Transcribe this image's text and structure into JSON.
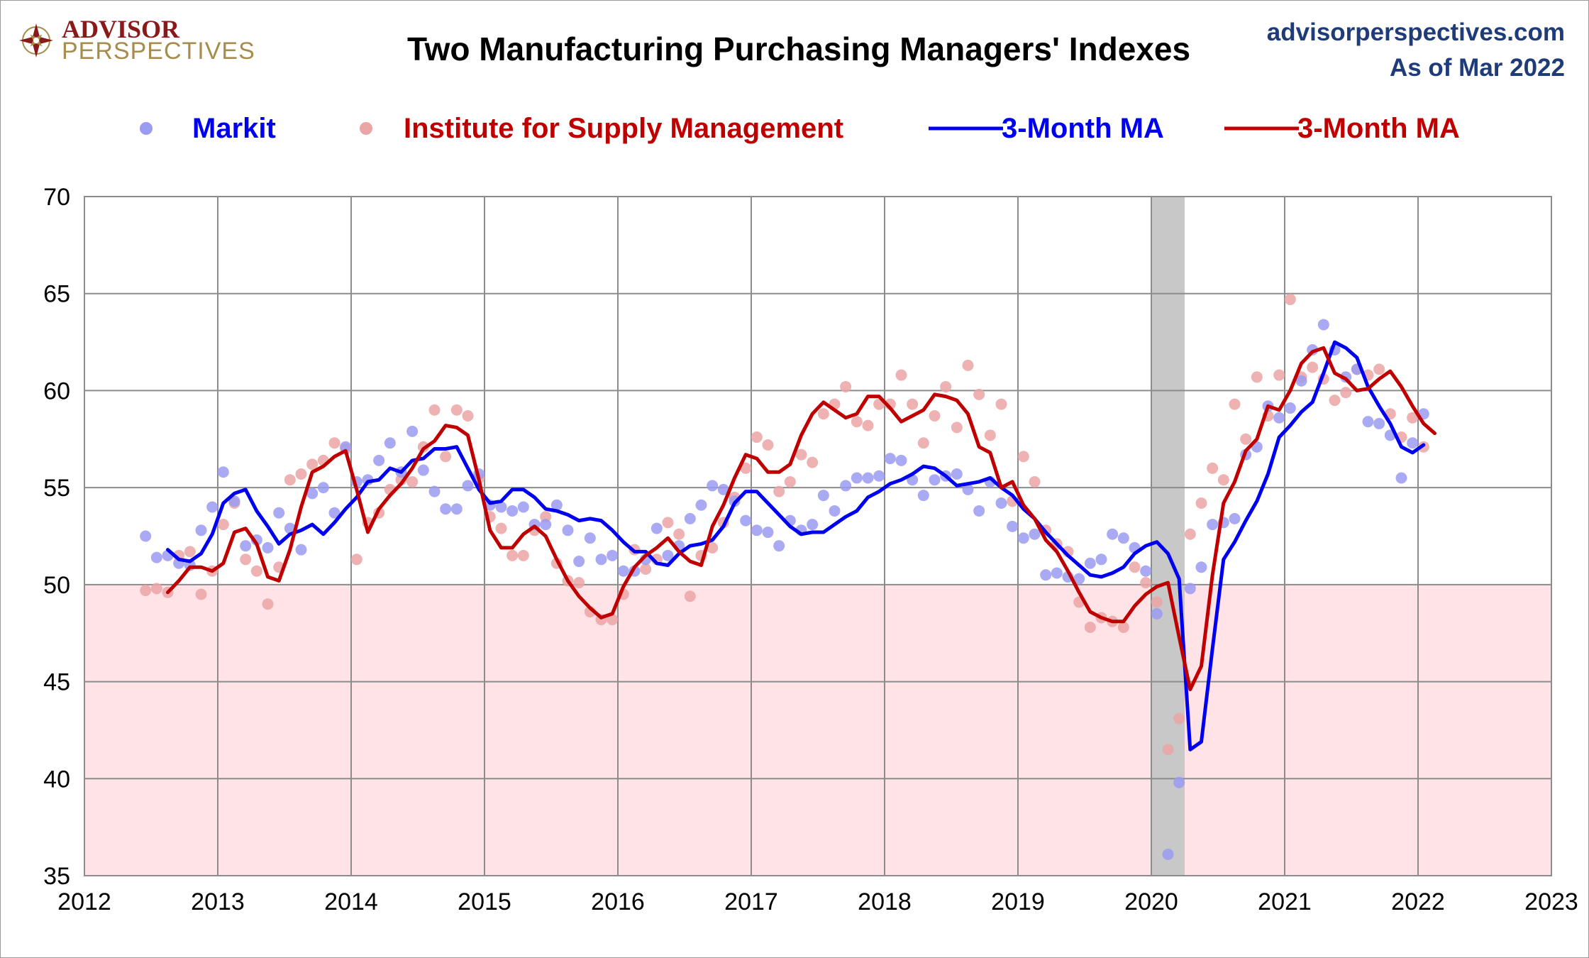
{
  "branding": {
    "logo_line1": "ADVISOR",
    "logo_line2": "PERSPECTIVES",
    "site": "advisorperspectives.com",
    "as_of": "As of Mar 2022"
  },
  "colors": {
    "markit_dot": "#9b9bf2",
    "ism_dot": "#eba5a5",
    "markit_line": "#0000f0",
    "ism_line": "#c00000",
    "below50_band": "#ffe3e6",
    "recession": "#c8c8c8",
    "grid": "#8c8c8c",
    "site_text": "#1f3c7a",
    "logo_gold": "#a78d4c",
    "logo_red": "#8a1a1a"
  },
  "chart_data": {
    "type": "scatter",
    "title": "Two Manufacturing Purchasing Managers' Indexes",
    "xlim": [
      2012,
      2023
    ],
    "ylim": [
      35,
      70
    ],
    "xticks": [
      "2012",
      "2013",
      "2014",
      "2015",
      "2016",
      "2017",
      "2018",
      "2019",
      "2020",
      "2021",
      "2022",
      "2023"
    ],
    "yticks": [
      "70",
      "65",
      "60",
      "55",
      "50",
      "45",
      "40",
      "35"
    ],
    "grid": true,
    "legend_placement": "top",
    "shaded_below": 50,
    "recession": [
      2020.0,
      2020.25
    ],
    "legend": [
      {
        "label": "Markit",
        "kind": "dot",
        "color_key": "markit_dot",
        "text_color": "markit_line"
      },
      {
        "label": "Institute for Supply Management",
        "kind": "dot",
        "color_key": "ism_dot",
        "text_color": "ism_line"
      },
      {
        "label": "3-Month MA",
        "kind": "line",
        "color_key": "markit_line",
        "text_color": "markit_line"
      },
      {
        "label": "3-Month MA",
        "kind": "line",
        "color_key": "ism_line",
        "text_color": "ism_line"
      }
    ],
    "start": "2012-06",
    "series": [
      {
        "name": "Markit",
        "kind": "dots",
        "color_key": "markit_dot",
        "values": [
          52.5,
          51.4,
          51.5,
          51.1,
          51.0,
          52.8,
          54.0,
          55.8,
          54.3,
          52.0,
          52.3,
          51.9,
          53.7,
          52.9,
          51.8,
          54.7,
          55.0,
          53.7,
          57.1,
          55.3,
          55.4,
          56.4,
          57.3,
          55.8,
          57.9,
          55.9,
          54.8,
          53.9,
          53.9,
          55.1,
          55.7,
          54.1,
          54.0,
          53.8,
          54.0,
          53.1,
          53.1,
          54.1,
          52.8,
          51.2,
          52.4,
          51.3,
          51.5,
          50.7,
          50.7,
          51.3,
          52.9,
          51.5,
          52.0,
          53.4,
          54.1,
          55.1,
          54.9,
          54.3,
          53.3,
          52.8,
          52.7,
          52.0,
          53.3,
          52.8,
          53.1,
          54.6,
          53.8,
          55.1,
          55.5,
          55.5,
          55.6,
          56.5,
          56.4,
          55.4,
          54.6,
          55.4,
          55.6,
          55.7,
          54.9,
          53.8,
          55.3,
          54.2,
          53.0,
          52.4,
          52.6,
          50.5,
          50.6,
          50.4,
          50.3,
          51.1,
          51.3,
          52.6,
          52.4,
          51.9,
          50.7,
          48.5,
          36.1,
          39.8,
          49.8,
          50.9,
          53.1,
          53.2,
          53.4,
          56.7,
          57.1,
          59.2,
          58.6,
          59.1,
          60.5,
          62.1,
          63.4,
          62.1,
          60.7,
          61.1,
          58.4,
          58.3,
          57.7,
          55.5,
          57.3,
          58.8
        ]
      },
      {
        "name": "Institute for Supply Management",
        "kind": "dots",
        "color_key": "ism_dot",
        "values": [
          49.7,
          49.8,
          49.6,
          51.5,
          51.7,
          49.5,
          50.7,
          53.1,
          54.2,
          51.3,
          50.7,
          49.0,
          50.9,
          55.4,
          55.7,
          56.2,
          56.4,
          57.3,
          57.0,
          51.3,
          53.2,
          53.7,
          54.9,
          55.4,
          55.3,
          57.1,
          59.0,
          56.6,
          59.0,
          58.7,
          55.5,
          53.5,
          52.9,
          51.5,
          51.5,
          52.8,
          53.5,
          51.1,
          50.2,
          50.1,
          48.6,
          48.2,
          48.2,
          49.5,
          51.8,
          50.8,
          51.3,
          53.2,
          52.6,
          49.4,
          51.5,
          51.9,
          53.2,
          54.5,
          56.0,
          57.6,
          57.2,
          54.8,
          55.3,
          56.7,
          56.3,
          58.8,
          59.3,
          60.2,
          58.4,
          58.2,
          59.3,
          59.3,
          60.8,
          59.3,
          57.3,
          58.7,
          60.2,
          58.1,
          61.3,
          59.8,
          57.7,
          59.3,
          54.3,
          56.6,
          55.3,
          52.8,
          52.1,
          51.7,
          49.1,
          47.8,
          48.3,
          48.1,
          47.8,
          50.9,
          50.1,
          49.1,
          41.5,
          43.1,
          52.6,
          54.2,
          56.0,
          55.4,
          59.3,
          57.5,
          60.7,
          58.7,
          60.8,
          64.7,
          60.7,
          61.2,
          60.6,
          59.5,
          59.9,
          61.1,
          60.8,
          61.1,
          58.8,
          57.6,
          58.6,
          57.1
        ]
      },
      {
        "name": "Markit 3-Month MA",
        "kind": "line",
        "color_key": "markit_line",
        "values": [
          null,
          null,
          51.8,
          51.3,
          51.2,
          51.6,
          52.6,
          54.2,
          54.7,
          54.9,
          53.8,
          53.0,
          52.1,
          52.6,
          52.8,
          53.1,
          52.6,
          53.2,
          53.9,
          54.5,
          55.3,
          55.4,
          56.0,
          55.8,
          56.4,
          56.5,
          57.0,
          57.0,
          57.1,
          56.0,
          54.9,
          54.2,
          54.3,
          54.9,
          54.9,
          54.5,
          53.9,
          53.8,
          53.6,
          53.3,
          53.4,
          53.3,
          52.8,
          52.2,
          51.7,
          51.7,
          51.1,
          51.0,
          51.6,
          52.0,
          52.1,
          52.3,
          53.0,
          54.2,
          54.8,
          54.8,
          54.2,
          53.6,
          53.0,
          52.6,
          52.7,
          52.7,
          53.1,
          53.5,
          53.8,
          54.5,
          54.8,
          55.2,
          55.4,
          55.7,
          56.1,
          56.0,
          55.6,
          55.1,
          55.2,
          55.3,
          55.5,
          55.0,
          54.6,
          53.9,
          53.4,
          52.7,
          52.1,
          51.5,
          51.0,
          50.5,
          50.4,
          50.6,
          50.9,
          51.6,
          52.0,
          52.2,
          51.6,
          50.3,
          41.5,
          41.9,
          46.7,
          51.3,
          52.2,
          53.3,
          54.3,
          55.7,
          57.6,
          58.2,
          58.9,
          59.4,
          60.9,
          62.5,
          62.2,
          61.7,
          60.2,
          59.2,
          58.3,
          57.1,
          56.8,
          57.2
        ]
      },
      {
        "name": "ISM 3-Month MA",
        "kind": "line",
        "color_key": "ism_line",
        "values": [
          null,
          null,
          49.6,
          50.2,
          50.9,
          50.9,
          50.7,
          51.1,
          52.7,
          52.9,
          52.1,
          50.4,
          50.2,
          51.8,
          54.0,
          55.8,
          56.1,
          56.6,
          56.9,
          54.9,
          52.7,
          53.9,
          54.6,
          55.2,
          56.0,
          57.0,
          57.4,
          58.2,
          58.1,
          57.7,
          55.4,
          52.8,
          51.9,
          51.9,
          52.6,
          53.0,
          52.5,
          51.3,
          50.2,
          49.4,
          48.8,
          48.3,
          48.5,
          49.9,
          50.9,
          51.5,
          51.9,
          52.4,
          51.7,
          51.2,
          51.0,
          53.0,
          54.1,
          55.5,
          56.7,
          56.5,
          55.8,
          55.8,
          56.2,
          57.7,
          58.8,
          59.4,
          59.0,
          58.6,
          58.8,
          59.7,
          59.7,
          59.1,
          58.4,
          58.7,
          59.0,
          59.8,
          59.7,
          59.5,
          58.8,
          57.1,
          56.8,
          55.0,
          55.3,
          54.1,
          53.4,
          52.3,
          51.7,
          50.7,
          49.6,
          48.6,
          48.3,
          48.1,
          48.1,
          48.9,
          49.5,
          49.9,
          50.1,
          47.3,
          44.6,
          45.8,
          50.5,
          54.2,
          55.3,
          56.9,
          57.5,
          59.2,
          59.0,
          60.0,
          61.4,
          62.0,
          62.2,
          60.9,
          60.6,
          60.0,
          60.1,
          60.6,
          61.0,
          60.2,
          59.2,
          58.3,
          57.8
        ]
      }
    ]
  }
}
